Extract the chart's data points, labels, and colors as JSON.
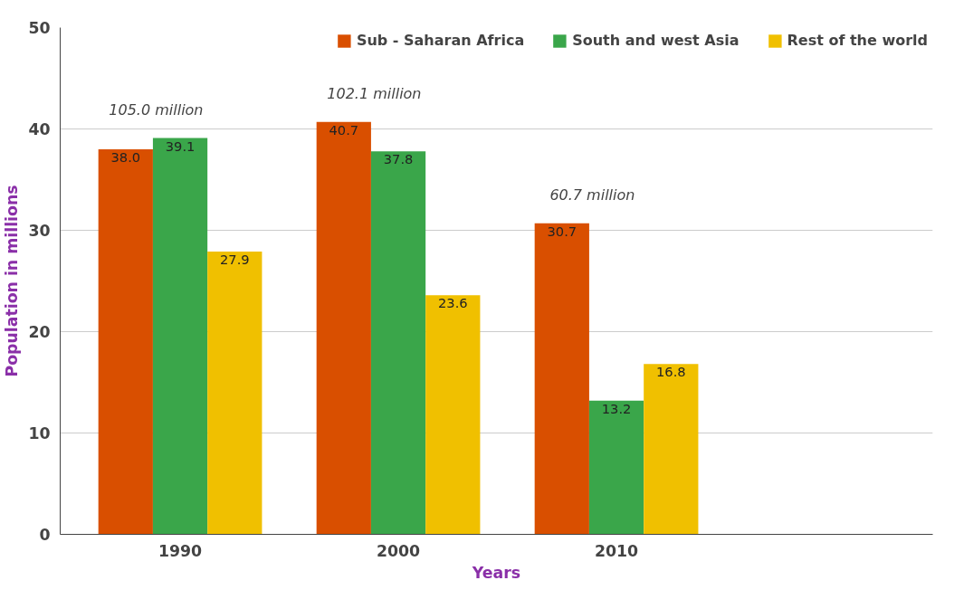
{
  "chart_data": {
    "type": "bar",
    "categories": [
      "1990",
      "2000",
      "2010"
    ],
    "series": [
      {
        "name": "Sub - Saharan Africa",
        "color": "#d94f00",
        "values": [
          38.0,
          40.7,
          30.7
        ],
        "value_labels": [
          "38.0",
          "40.7",
          "30.7"
        ]
      },
      {
        "name": "South and west Asia",
        "color": "#3aa64a",
        "values": [
          39.1,
          37.8,
          13.2
        ],
        "value_labels": [
          "39.1",
          "37.8",
          "13.2"
        ]
      },
      {
        "name": "Rest of the world",
        "color": "#f0c000",
        "values": [
          27.9,
          23.6,
          16.8
        ],
        "value_labels": [
          "27.9",
          "23.6",
          "16.8"
        ]
      }
    ],
    "ylim": [
      0,
      50
    ],
    "yticks": [
      0,
      10,
      20,
      30,
      40,
      50
    ],
    "ylabel": "Population in millions",
    "xlabel": "Years",
    "annotations": [
      "105.0  million",
      "102.1  million",
      "60.7  million"
    ],
    "grid": "y",
    "legend": "top"
  }
}
